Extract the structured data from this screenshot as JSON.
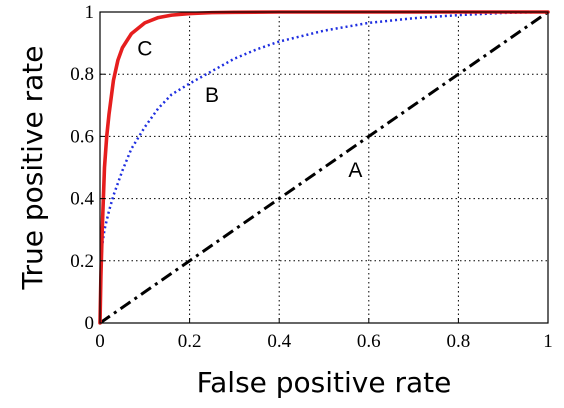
{
  "chart_data": {
    "type": "line",
    "title": "",
    "xlabel": "False positive rate",
    "ylabel": "True positive rate",
    "xlim": [
      0,
      1
    ],
    "ylim": [
      0,
      1
    ],
    "grid": true,
    "x_ticks": [
      "0",
      "0.2",
      "0.4",
      "0.6",
      "0.8",
      "1"
    ],
    "y_ticks": [
      "0",
      "0.2",
      "0.4",
      "0.6",
      "0.8",
      "1"
    ],
    "series": [
      {
        "name": "A",
        "color": "#000000",
        "style": "dash-dot",
        "x": [
          0,
          1
        ],
        "y": [
          0,
          1
        ]
      },
      {
        "name": "B",
        "color": "#1f2fe0",
        "style": "dotted",
        "x": [
          0,
          0.002,
          0.005,
          0.01,
          0.02,
          0.03,
          0.05,
          0.07,
          0.1,
          0.13,
          0.16,
          0.2,
          0.25,
          0.3,
          0.35,
          0.4,
          0.5,
          0.6,
          0.7,
          0.8,
          0.9,
          1.0
        ],
        "y": [
          0,
          0.18,
          0.25,
          0.3,
          0.36,
          0.41,
          0.49,
          0.56,
          0.63,
          0.69,
          0.735,
          0.77,
          0.81,
          0.85,
          0.88,
          0.905,
          0.94,
          0.965,
          0.98,
          0.99,
          0.997,
          1.0
        ]
      },
      {
        "name": "C",
        "color": "#e61e1e",
        "style": "solid",
        "x": [
          0,
          0.002,
          0.005,
          0.01,
          0.015,
          0.02,
          0.03,
          0.04,
          0.05,
          0.07,
          0.1,
          0.13,
          0.16,
          0.2,
          0.25,
          0.3,
          0.4,
          0.6,
          0.8,
          1.0
        ],
        "y": [
          0,
          0.15,
          0.3,
          0.5,
          0.6,
          0.67,
          0.78,
          0.845,
          0.885,
          0.93,
          0.965,
          0.982,
          0.99,
          0.995,
          0.998,
          0.999,
          1.0,
          1.0,
          1.0,
          1.0
        ]
      }
    ],
    "annotations": [
      {
        "text": "A",
        "x": 0.57,
        "y": 0.47
      },
      {
        "text": "B",
        "x": 0.25,
        "y": 0.71
      },
      {
        "text": "C",
        "x": 0.1,
        "y": 0.86
      }
    ]
  }
}
